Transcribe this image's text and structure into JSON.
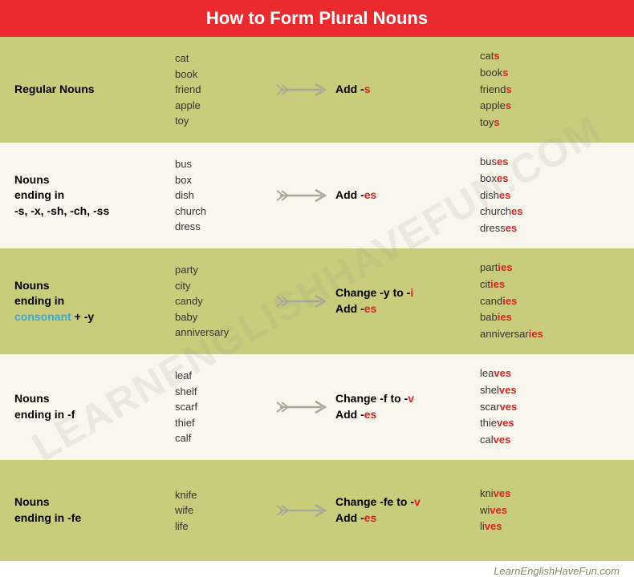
{
  "title": "How to Form Plural Nouns",
  "header_bg": "#eb2a2f",
  "header_text_color": "#ffffff",
  "row_colors": {
    "olive": "#c9cc7a",
    "cream": "#f9f7ed"
  },
  "accent_red": "#d62323",
  "accent_blue": "#3aa8d9",
  "arrow_color": "#a8a998",
  "watermark": "LEARNENGLISHHAVEFUN.COM",
  "footer": "LearnEnglishHaveFun.com",
  "rows": [
    {
      "bg": "olive",
      "category_parts": [
        {
          "t": "Regular Nouns",
          "c": "black"
        }
      ],
      "examples": [
        "cat",
        "book",
        "friend",
        "apple",
        "toy"
      ],
      "rule_lines": [
        [
          {
            "t": "Add -",
            "c": "black"
          },
          {
            "t": "s",
            "c": "red"
          }
        ]
      ],
      "results": [
        [
          {
            "t": "cat",
            "c": "black"
          },
          {
            "t": "s",
            "c": "red"
          }
        ],
        [
          {
            "t": "book",
            "c": "black"
          },
          {
            "t": "s",
            "c": "red"
          }
        ],
        [
          {
            "t": "friend",
            "c": "black"
          },
          {
            "t": "s",
            "c": "red"
          }
        ],
        [
          {
            "t": "apple",
            "c": "black"
          },
          {
            "t": "s",
            "c": "red"
          }
        ],
        [
          {
            "t": "toy",
            "c": "black"
          },
          {
            "t": "s",
            "c": "red"
          }
        ]
      ]
    },
    {
      "bg": "cream",
      "category_parts": [
        {
          "t": "Nouns",
          "c": "black"
        },
        {
          "t": "ending in",
          "c": "black"
        },
        {
          "t": "-s, -x, -sh, -ch, -ss",
          "c": "black"
        }
      ],
      "examples": [
        "bus",
        "box",
        "dish",
        "church",
        "dress"
      ],
      "rule_lines": [
        [
          {
            "t": "Add -",
            "c": "black"
          },
          {
            "t": "es",
            "c": "red"
          }
        ]
      ],
      "results": [
        [
          {
            "t": "bus",
            "c": "black"
          },
          {
            "t": "es",
            "c": "red"
          }
        ],
        [
          {
            "t": "box",
            "c": "black"
          },
          {
            "t": "es",
            "c": "red"
          }
        ],
        [
          {
            "t": "dish",
            "c": "black"
          },
          {
            "t": "es",
            "c": "red"
          }
        ],
        [
          {
            "t": "church",
            "c": "black"
          },
          {
            "t": "es",
            "c": "red"
          }
        ],
        [
          {
            "t": "dress",
            "c": "black"
          },
          {
            "t": "es",
            "c": "red"
          }
        ]
      ]
    },
    {
      "bg": "olive",
      "category_parts": [
        {
          "t": "Nouns",
          "c": "black"
        },
        {
          "t": "ending in",
          "c": "black"
        },
        {
          "t": "consonant",
          "c": "blue"
        },
        {
          "t": " + -y",
          "c": "black",
          "sameLine": true
        }
      ],
      "examples": [
        "party",
        "city",
        "candy",
        "baby",
        "anniversary"
      ],
      "rule_lines": [
        [
          {
            "t": "Change -y to -",
            "c": "black"
          },
          {
            "t": "i",
            "c": "red"
          }
        ],
        [
          {
            "t": "Add -",
            "c": "black"
          },
          {
            "t": "es",
            "c": "red"
          }
        ]
      ],
      "results": [
        [
          {
            "t": "part",
            "c": "black"
          },
          {
            "t": "ies",
            "c": "red"
          }
        ],
        [
          {
            "t": "cit",
            "c": "black"
          },
          {
            "t": "ies",
            "c": "red"
          }
        ],
        [
          {
            "t": "cand",
            "c": "black"
          },
          {
            "t": "ies",
            "c": "red"
          }
        ],
        [
          {
            "t": "bab",
            "c": "black"
          },
          {
            "t": "ies",
            "c": "red"
          }
        ],
        [
          {
            "t": "anniversar",
            "c": "black"
          },
          {
            "t": "ies",
            "c": "red"
          }
        ]
      ]
    },
    {
      "bg": "cream",
      "category_parts": [
        {
          "t": "Nouns",
          "c": "black"
        },
        {
          "t": "ending in -f",
          "c": "black"
        }
      ],
      "examples": [
        "leaf",
        "shelf",
        "scarf",
        "thief",
        "calf"
      ],
      "rule_lines": [
        [
          {
            "t": "Change -f to -",
            "c": "black"
          },
          {
            "t": "v",
            "c": "red"
          }
        ],
        [
          {
            "t": "Add -",
            "c": "black"
          },
          {
            "t": "es",
            "c": "red"
          }
        ]
      ],
      "results": [
        [
          {
            "t": "lea",
            "c": "black"
          },
          {
            "t": "ves",
            "c": "red"
          }
        ],
        [
          {
            "t": "shel",
            "c": "black"
          },
          {
            "t": "ves",
            "c": "red"
          }
        ],
        [
          {
            "t": "scar",
            "c": "black"
          },
          {
            "t": "ves",
            "c": "red"
          }
        ],
        [
          {
            "t": "thie",
            "c": "black"
          },
          {
            "t": "ves",
            "c": "red"
          }
        ],
        [
          {
            "t": "cal",
            "c": "black"
          },
          {
            "t": "ves",
            "c": "red"
          }
        ]
      ]
    },
    {
      "bg": "olive",
      "category_parts": [
        {
          "t": "Nouns",
          "c": "black"
        },
        {
          "t": "ending in -fe",
          "c": "black"
        }
      ],
      "examples": [
        "knife",
        "wife",
        "life"
      ],
      "rule_lines": [
        [
          {
            "t": "Change -fe to -",
            "c": "black"
          },
          {
            "t": "v",
            "c": "red"
          }
        ],
        [
          {
            "t": "Add -",
            "c": "black"
          },
          {
            "t": "es",
            "c": "red"
          }
        ]
      ],
      "results": [
        [
          {
            "t": "kni",
            "c": "black"
          },
          {
            "t": "ves",
            "c": "red"
          }
        ],
        [
          {
            "t": "wi",
            "c": "black"
          },
          {
            "t": "ves",
            "c": "red"
          }
        ],
        [
          {
            "t": "li",
            "c": "black"
          },
          {
            "t": "ves",
            "c": "red"
          }
        ]
      ]
    }
  ]
}
